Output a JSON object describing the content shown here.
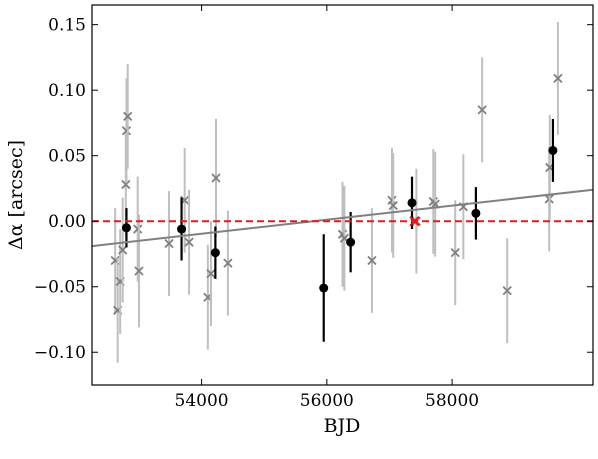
{
  "chart_data": {
    "type": "scatter",
    "xlabel": "BJD",
    "ylabel": "Δα [arcsec]",
    "xlim": [
      52250,
      60250
    ],
    "ylim": [
      -0.125,
      0.165
    ],
    "xticks": [
      54000,
      56000,
      58000
    ],
    "yticks": [
      -0.1,
      -0.05,
      0.0,
      0.05,
      0.1,
      0.15
    ],
    "xtick_labels": [
      "54000",
      "56000",
      "58000"
    ],
    "ytick_labels": [
      "−0.10",
      "−0.05",
      "0.00",
      "0.05",
      "0.10",
      "0.15"
    ],
    "grid": false,
    "series": [
      {
        "marker": "x",
        "color": "#7f7f7f",
        "errcolor": "#bfbfbf",
        "points": [
          {
            "x": 52620,
            "y": -0.03,
            "err": 0.04
          },
          {
            "x": 52660,
            "y": -0.068,
            "err": 0.04
          },
          {
            "x": 52700,
            "y": -0.046,
            "err": 0.04
          },
          {
            "x": 52740,
            "y": -0.022,
            "err": 0.04
          },
          {
            "x": 52790,
            "y": 0.028,
            "err": 0.04
          },
          {
            "x": 52800,
            "y": 0.069,
            "err": 0.04
          },
          {
            "x": 52820,
            "y": 0.08,
            "err": 0.04
          },
          {
            "x": 52980,
            "y": -0.006,
            "err": 0.04
          },
          {
            "x": 53000,
            "y": -0.038,
            "err": 0.043
          },
          {
            "x": 53480,
            "y": -0.017,
            "err": 0.04
          },
          {
            "x": 53730,
            "y": 0.016,
            "err": 0.04
          },
          {
            "x": 53800,
            "y": -0.016,
            "err": 0.04
          },
          {
            "x": 54100,
            "y": -0.058,
            "err": 0.04
          },
          {
            "x": 54150,
            "y": -0.04,
            "err": 0.04
          },
          {
            "x": 54230,
            "y": 0.033,
            "err": 0.045
          },
          {
            "x": 54420,
            "y": -0.032,
            "err": 0.04
          },
          {
            "x": 56250,
            "y": -0.01,
            "err": 0.04
          },
          {
            "x": 56280,
            "y": -0.013,
            "err": 0.04
          },
          {
            "x": 56720,
            "y": -0.03,
            "err": 0.04
          },
          {
            "x": 57040,
            "y": 0.016,
            "err": 0.04
          },
          {
            "x": 57060,
            "y": 0.012,
            "err": 0.04
          },
          {
            "x": 57430,
            "y": 0.0,
            "err": 0.04
          },
          {
            "x": 57700,
            "y": 0.015,
            "err": 0.04
          },
          {
            "x": 57730,
            "y": 0.013,
            "err": 0.04
          },
          {
            "x": 58050,
            "y": -0.024,
            "err": 0.04
          },
          {
            "x": 58180,
            "y": 0.011,
            "err": 0.04
          },
          {
            "x": 58480,
            "y": 0.085,
            "err": 0.04
          },
          {
            "x": 58880,
            "y": -0.053,
            "err": 0.04
          },
          {
            "x": 59550,
            "y": 0.017,
            "err": 0.04
          },
          {
            "x": 59560,
            "y": 0.041,
            "err": 0.04
          },
          {
            "x": 59690,
            "y": 0.109,
            "err": 0.043
          }
        ]
      },
      {
        "marker": "o",
        "color": "#000000",
        "errcolor": "#000000",
        "points": [
          {
            "x": 52800,
            "y": -0.005,
            "err": 0.015
          },
          {
            "x": 53680,
            "y": -0.006,
            "err": 0.024
          },
          {
            "x": 54220,
            "y": -0.024,
            "err": 0.02
          },
          {
            "x": 55950,
            "y": -0.051,
            "err": 0.041
          },
          {
            "x": 56380,
            "y": -0.016,
            "err": 0.023
          },
          {
            "x": 57360,
            "y": 0.014,
            "err": 0.02
          },
          {
            "x": 58380,
            "y": 0.006,
            "err": 0.02
          },
          {
            "x": 59610,
            "y": 0.054,
            "err": 0.024
          }
        ]
      }
    ],
    "fit_line": {
      "color": "#808080",
      "x": [
        52250,
        60250
      ],
      "y": [
        -0.019,
        0.024
      ]
    },
    "reference_line": {
      "color": "#e41a1c",
      "style": "dashed",
      "y": 0.0
    },
    "highlight_marker": {
      "marker": "x",
      "color": "#e41a1c",
      "x": 57400,
      "y": 0.0
    }
  }
}
